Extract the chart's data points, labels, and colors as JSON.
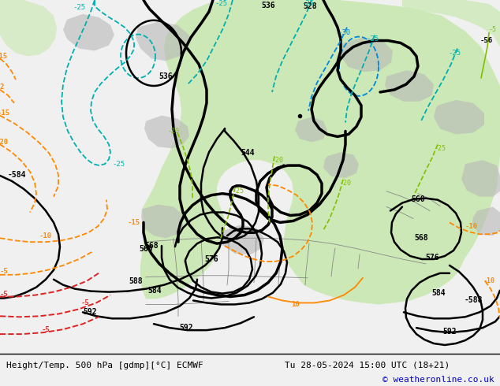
{
  "title_left": "Height/Temp. 500 hPa [gdmp][°C] ECMWF",
  "title_right": "Tu 28-05-2024 15:00 UTC (18+21)",
  "copyright": "© weatheronline.co.uk",
  "bg_color": "#e0e0e0",
  "green_color": "#c8e8b0",
  "copyright_color": "#0000cc",
  "bottom_bg": "#f0f0f0",
  "label_bg": "#e0e0e0"
}
